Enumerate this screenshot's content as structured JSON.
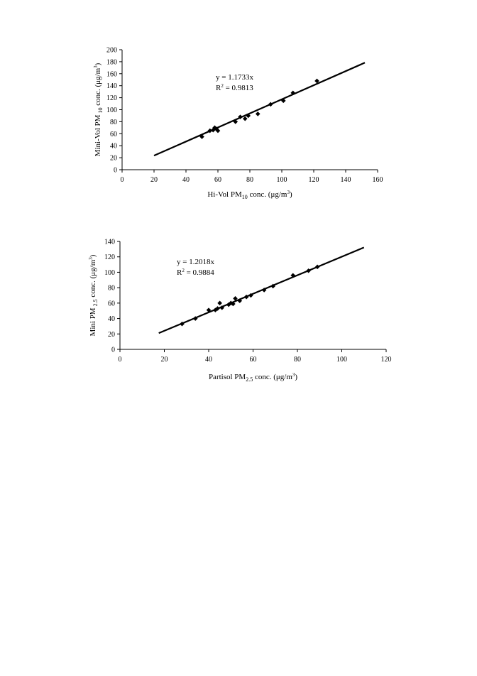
{
  "chart_data": [
    {
      "type": "scatter",
      "title": "",
      "xlabel": {
        "pre": "Hi-Vol PM",
        "sub": "10",
        "post": " conc. (μg/m",
        "sup": "3",
        "end": ")"
      },
      "ylabel": {
        "pre": "Mini-Vol PM",
        "sub": " 10",
        "post": " conc. (μg/m",
        "sup": "3",
        "end": ")"
      },
      "xlim": [
        0,
        160
      ],
      "ylim": [
        0,
        200
      ],
      "xticks": [
        0,
        20,
        40,
        60,
        80,
        100,
        120,
        140,
        160
      ],
      "yticks": [
        0,
        20,
        40,
        60,
        80,
        100,
        120,
        140,
        160,
        180,
        200
      ],
      "annotation": {
        "equation": "y = 1.1733x",
        "r2_prefix": "R",
        "r2_sup": "2",
        "r2_value": " = 0.9813"
      },
      "trendline": {
        "slope": 1.1733,
        "x_range": [
          20,
          152
        ]
      },
      "points": [
        {
          "x": 50,
          "y": 55
        },
        {
          "x": 55,
          "y": 65
        },
        {
          "x": 57,
          "y": 66
        },
        {
          "x": 58,
          "y": 70
        },
        {
          "x": 59,
          "y": 68
        },
        {
          "x": 60,
          "y": 65
        },
        {
          "x": 71,
          "y": 80
        },
        {
          "x": 74,
          "y": 88
        },
        {
          "x": 77,
          "y": 85
        },
        {
          "x": 79,
          "y": 90
        },
        {
          "x": 85,
          "y": 93
        },
        {
          "x": 93,
          "y": 109
        },
        {
          "x": 101,
          "y": 115
        },
        {
          "x": 107,
          "y": 128
        },
        {
          "x": 122,
          "y": 148
        }
      ]
    },
    {
      "type": "scatter",
      "title": "",
      "xlabel": {
        "pre": "Partisol PM",
        "sub": "2.5",
        "post": " conc. (μg/m",
        "sup": "3",
        "end": ")"
      },
      "ylabel": {
        "pre": "Mini PM",
        "sub": " 2.5",
        "post": " conc. (μg/m",
        "sup": "3",
        "end": ")"
      },
      "xlim": [
        0,
        120
      ],
      "ylim": [
        0,
        140
      ],
      "xticks": [
        0,
        20,
        40,
        60,
        80,
        100,
        120
      ],
      "yticks": [
        0,
        20,
        40,
        60,
        80,
        100,
        120,
        140
      ],
      "annotation": {
        "equation": "y = 1.2018x",
        "r2_prefix": "R",
        "r2_sup": "2",
        "r2_value": " = 0.9884"
      },
      "trendline": {
        "slope": 1.2018,
        "x_range": [
          17.5,
          110
        ]
      },
      "points": [
        {
          "x": 28,
          "y": 33
        },
        {
          "x": 34,
          "y": 40
        },
        {
          "x": 40,
          "y": 51
        },
        {
          "x": 43,
          "y": 51
        },
        {
          "x": 44,
          "y": 53
        },
        {
          "x": 45,
          "y": 60
        },
        {
          "x": 46,
          "y": 54
        },
        {
          "x": 49,
          "y": 58
        },
        {
          "x": 50,
          "y": 60
        },
        {
          "x": 51,
          "y": 59
        },
        {
          "x": 52,
          "y": 66
        },
        {
          "x": 54,
          "y": 63
        },
        {
          "x": 57,
          "y": 68
        },
        {
          "x": 59,
          "y": 70
        },
        {
          "x": 65,
          "y": 77
        },
        {
          "x": 69,
          "y": 82
        },
        {
          "x": 78,
          "y": 96
        },
        {
          "x": 85,
          "y": 102
        },
        {
          "x": 89,
          "y": 107
        }
      ]
    }
  ]
}
